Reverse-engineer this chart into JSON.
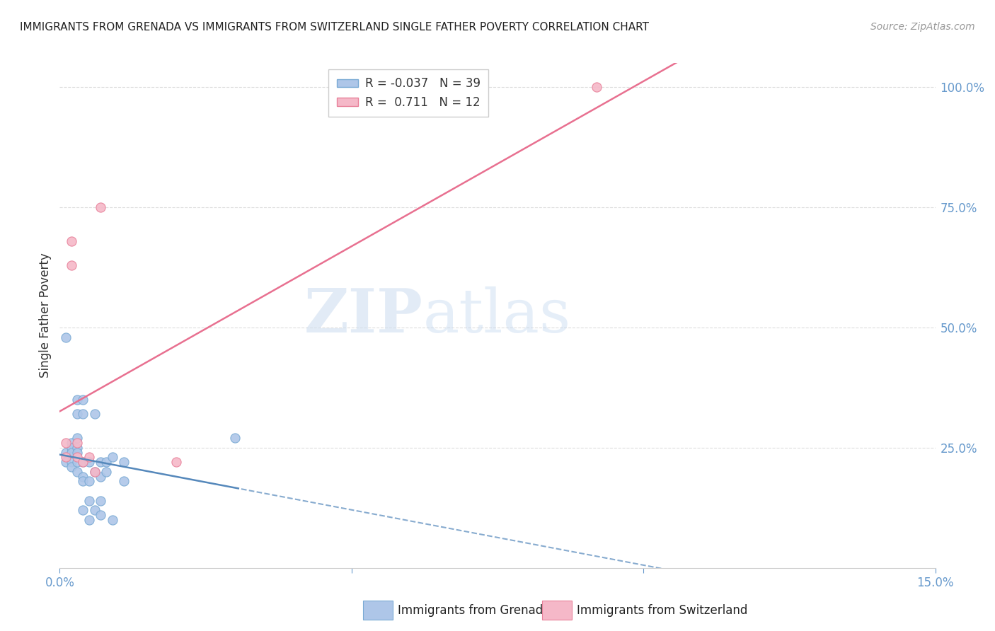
{
  "title": "IMMIGRANTS FROM GRENADA VS IMMIGRANTS FROM SWITZERLAND SINGLE FATHER POVERTY CORRELATION CHART",
  "source": "Source: ZipAtlas.com",
  "ylabel": "Single Father Poverty",
  "xlim": [
    0.0,
    0.15
  ],
  "ylim": [
    0.0,
    1.05
  ],
  "xtick_vals": [
    0.0,
    0.05,
    0.1,
    0.15
  ],
  "xtick_labels_show": [
    "0.0%",
    "",
    "",
    "15.0%"
  ],
  "ytick_vals": [
    0.25,
    0.5,
    0.75,
    1.0
  ],
  "ytick_labels": [
    "25.0%",
    "50.0%",
    "75.0%",
    "100.0%"
  ],
  "color_grenada": "#aec6e8",
  "color_switzerland": "#f5b8c8",
  "color_grenada_edge": "#7aaad4",
  "color_switzerland_edge": "#e8819a",
  "trend_grenada_color": "#5588bb",
  "trend_switzerland_color": "#e87090",
  "R_grenada": -0.037,
  "N_grenada": 39,
  "R_switzerland": 0.711,
  "N_switzerland": 12,
  "watermark_zip": "ZIP",
  "watermark_atlas": "atlas",
  "legend_label_grenada": "Immigrants from Grenada",
  "legend_label_switzerland": "Immigrants from Switzerland",
  "grenada_x": [
    0.001,
    0.001,
    0.001,
    0.002,
    0.002,
    0.002,
    0.002,
    0.002,
    0.003,
    0.003,
    0.003,
    0.003,
    0.003,
    0.003,
    0.003,
    0.004,
    0.004,
    0.004,
    0.004,
    0.004,
    0.004,
    0.005,
    0.005,
    0.005,
    0.005,
    0.006,
    0.006,
    0.006,
    0.007,
    0.007,
    0.007,
    0.007,
    0.008,
    0.008,
    0.009,
    0.009,
    0.011,
    0.011,
    0.03
  ],
  "grenada_y": [
    0.48,
    0.24,
    0.22,
    0.26,
    0.25,
    0.24,
    0.22,
    0.21,
    0.35,
    0.32,
    0.27,
    0.25,
    0.24,
    0.22,
    0.2,
    0.35,
    0.32,
    0.22,
    0.19,
    0.18,
    0.12,
    0.22,
    0.18,
    0.14,
    0.1,
    0.32,
    0.2,
    0.12,
    0.22,
    0.19,
    0.14,
    0.11,
    0.22,
    0.2,
    0.23,
    0.1,
    0.22,
    0.18,
    0.27
  ],
  "switzerland_x": [
    0.001,
    0.001,
    0.002,
    0.002,
    0.003,
    0.003,
    0.004,
    0.005,
    0.006,
    0.007,
    0.02,
    0.092
  ],
  "switzerland_y": [
    0.26,
    0.23,
    0.68,
    0.63,
    0.26,
    0.23,
    0.22,
    0.23,
    0.2,
    0.75,
    0.22,
    1.0
  ],
  "grid_color": "#dddddd",
  "tick_color": "#6699cc",
  "ylabel_color": "#333333",
  "title_color": "#222222",
  "source_color": "#999999"
}
